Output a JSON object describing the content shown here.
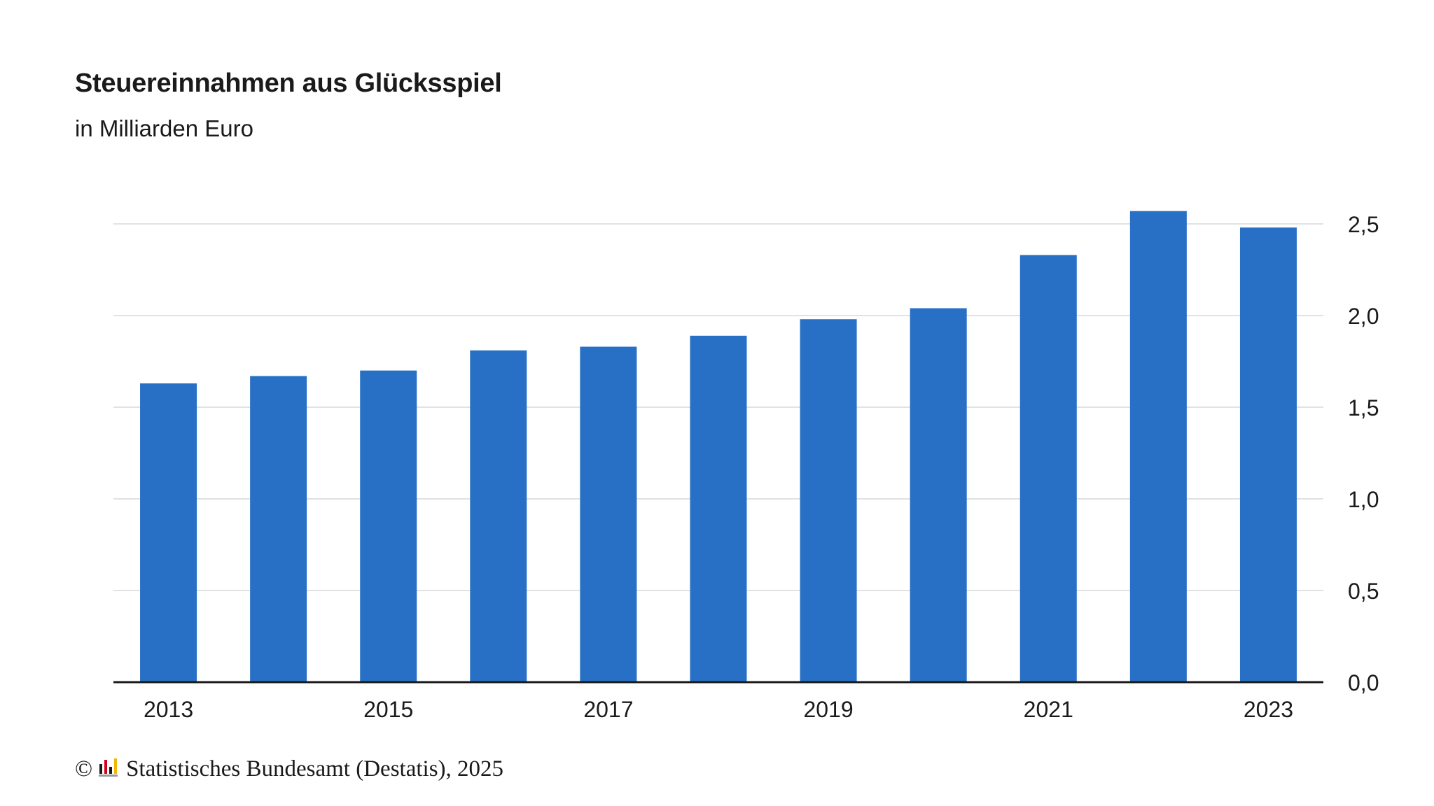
{
  "chart_data": {
    "type": "bar",
    "title": "Steuereinnahmen aus Glücksspiel",
    "subtitle": "in Milliarden Euro",
    "categories": [
      "2013",
      "2014",
      "2015",
      "2016",
      "2017",
      "2018",
      "2019",
      "2020",
      "2021",
      "2022",
      "2023"
    ],
    "x_tick_labels": [
      "2013",
      "",
      "2015",
      "",
      "2017",
      "",
      "2019",
      "",
      "2021",
      "",
      "2023"
    ],
    "values": [
      1.63,
      1.67,
      1.7,
      1.81,
      1.83,
      1.89,
      1.98,
      2.04,
      2.33,
      2.57,
      2.48
    ],
    "ylim": [
      0,
      2.5
    ],
    "y_ticks": [
      0,
      0.5,
      1.0,
      1.5,
      2.0,
      2.5
    ],
    "y_tick_labels": [
      "0,0",
      "0,5",
      "1,0",
      "1,5",
      "2,0",
      "2,5"
    ],
    "y_axis_side": "right",
    "grid": true,
    "bar_color": "#2870c5",
    "grid_color": "#d9d9d9",
    "axis_color": "#1a1a1a"
  },
  "footer": {
    "copyright_symbol": "©",
    "source": "Statistisches Bundesamt (Destatis), 2025",
    "logo_icon": "destatis-logo-icon"
  }
}
